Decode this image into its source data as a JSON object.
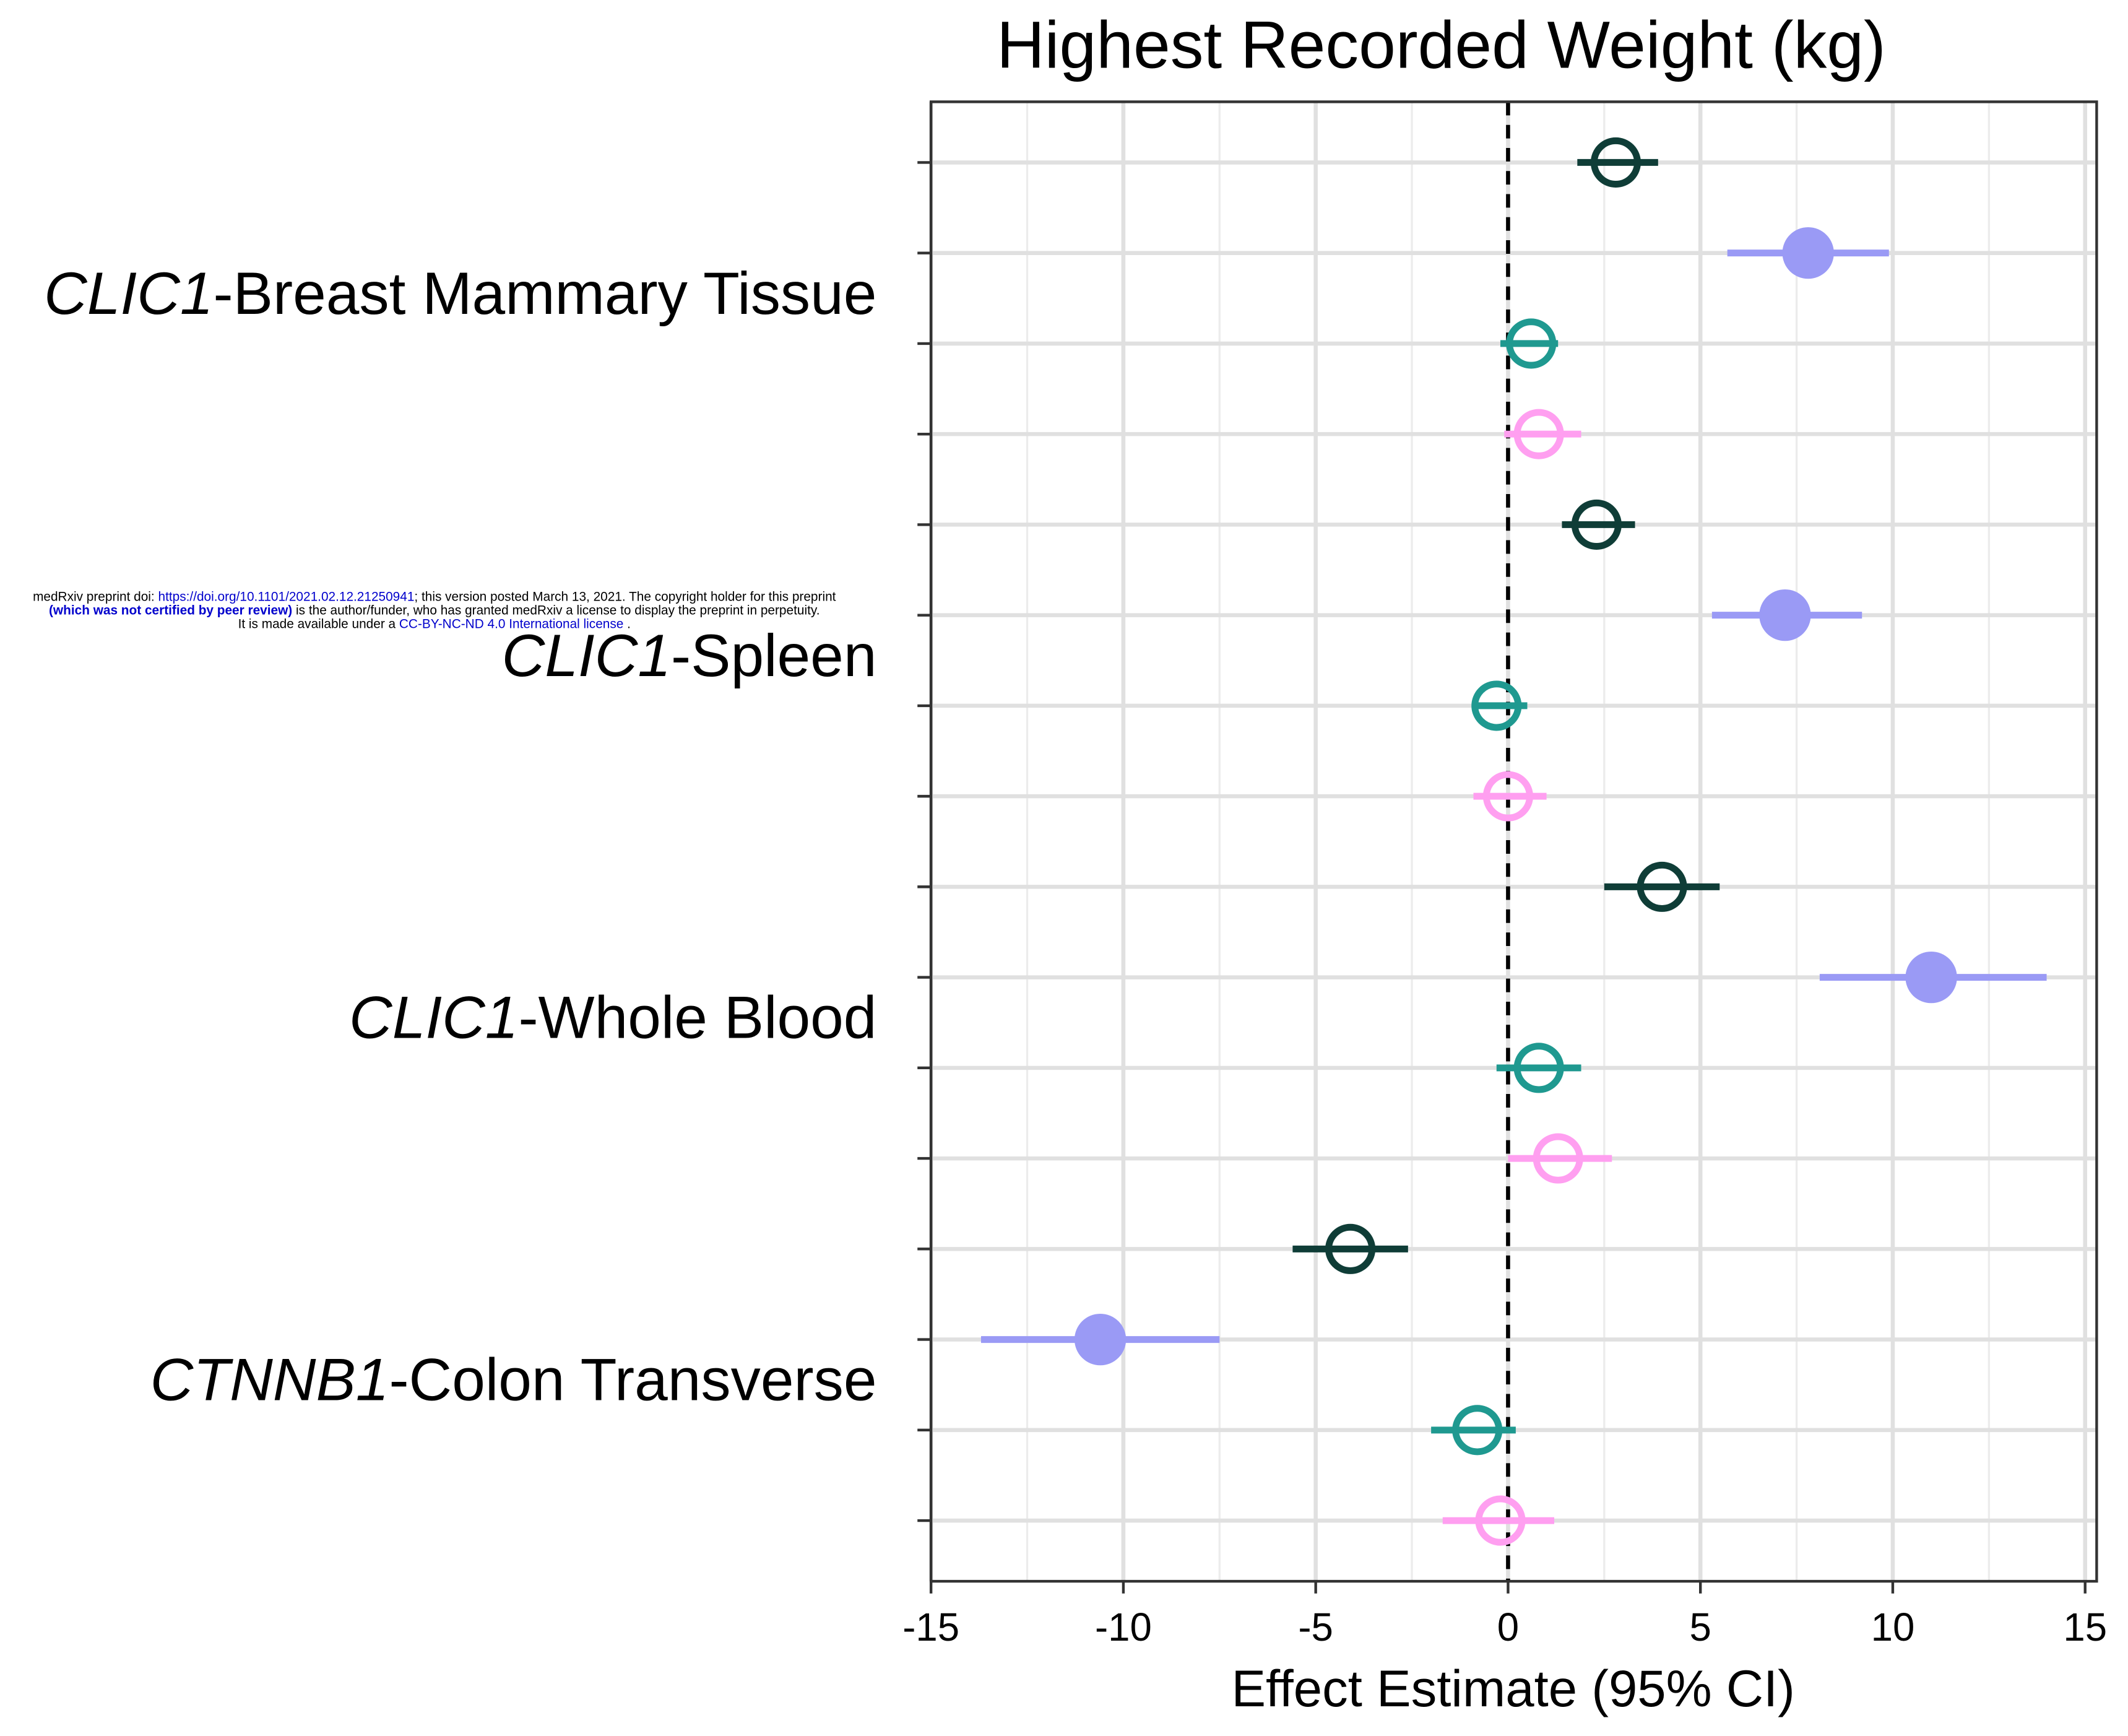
{
  "chart_data": {
    "type": "forest",
    "title": "Highest Recorded Weight (kg)",
    "x_label": "Effect Estimate (95% CI)",
    "categories": [
      {
        "gene": "CLIC1",
        "tissue": "-Breast Mammary Tissue"
      },
      {
        "gene": "CLIC1",
        "tissue": "-Spleen"
      },
      {
        "gene": "CLIC1",
        "tissue": "-Whole Blood"
      },
      {
        "gene": "CTNNB1",
        "tissue": "-Colon Transverse"
      }
    ],
    "series": [
      {
        "color": "#0f3d37",
        "filled": false,
        "values": [
          2.8,
          2.3,
          4.0,
          -4.1
        ],
        "lower": [
          1.8,
          1.4,
          2.5,
          -5.6
        ],
        "upper": [
          3.9,
          3.3,
          5.5,
          -2.6
        ]
      },
      {
        "color": "#9a9af5",
        "filled": true,
        "values": [
          7.8,
          7.2,
          11.0,
          -10.6
        ],
        "lower": [
          5.7,
          5.3,
          8.1,
          -13.7
        ],
        "upper": [
          9.9,
          9.2,
          14.0,
          -7.5
        ]
      },
      {
        "color": "#1f9990",
        "filled": false,
        "values": [
          0.6,
          -0.3,
          0.8,
          -0.8
        ],
        "lower": [
          -0.2,
          -0.9,
          -0.3,
          -2.0
        ],
        "upper": [
          1.3,
          0.5,
          1.9,
          0.2
        ]
      },
      {
        "color": "#ff9ff0",
        "filled": false,
        "values": [
          0.8,
          0.0,
          1.3,
          -0.2
        ],
        "lower": [
          -0.1,
          -0.9,
          0.0,
          -1.7
        ],
        "upper": [
          1.9,
          1.0,
          2.7,
          1.2
        ]
      }
    ],
    "xlim": [
      -15,
      15.3
    ],
    "xticks": [
      -15,
      -10,
      -5,
      0,
      5,
      10,
      15
    ],
    "xminorticks": [
      -12.5,
      -7.5,
      -2.5,
      2.5,
      7.5,
      12.5
    ],
    "refline": 0,
    "grid": true
  },
  "watermark": [
    [
      {
        "text": "medRxiv preprint doi: ",
        "style": "plain"
      },
      {
        "text": "https://doi.org/10.1101/2021.02.12.21250941",
        "style": "link"
      },
      {
        "text": "; this version posted March 13, 2021. The copyright holder for this preprint",
        "style": "plain"
      }
    ],
    [
      {
        "text": "(which was not certified by peer review)",
        "style": "bold-link"
      },
      {
        "text": " is the author/funder, who has granted medRxiv a license to display the preprint in perpetuity.",
        "style": "plain"
      }
    ],
    [
      {
        "text": "It is made available under a ",
        "style": "plain"
      },
      {
        "text": "CC-BY-NC-ND 4.0 International license",
        "style": "link"
      },
      {
        "text": " .",
        "style": "plain"
      }
    ]
  ]
}
